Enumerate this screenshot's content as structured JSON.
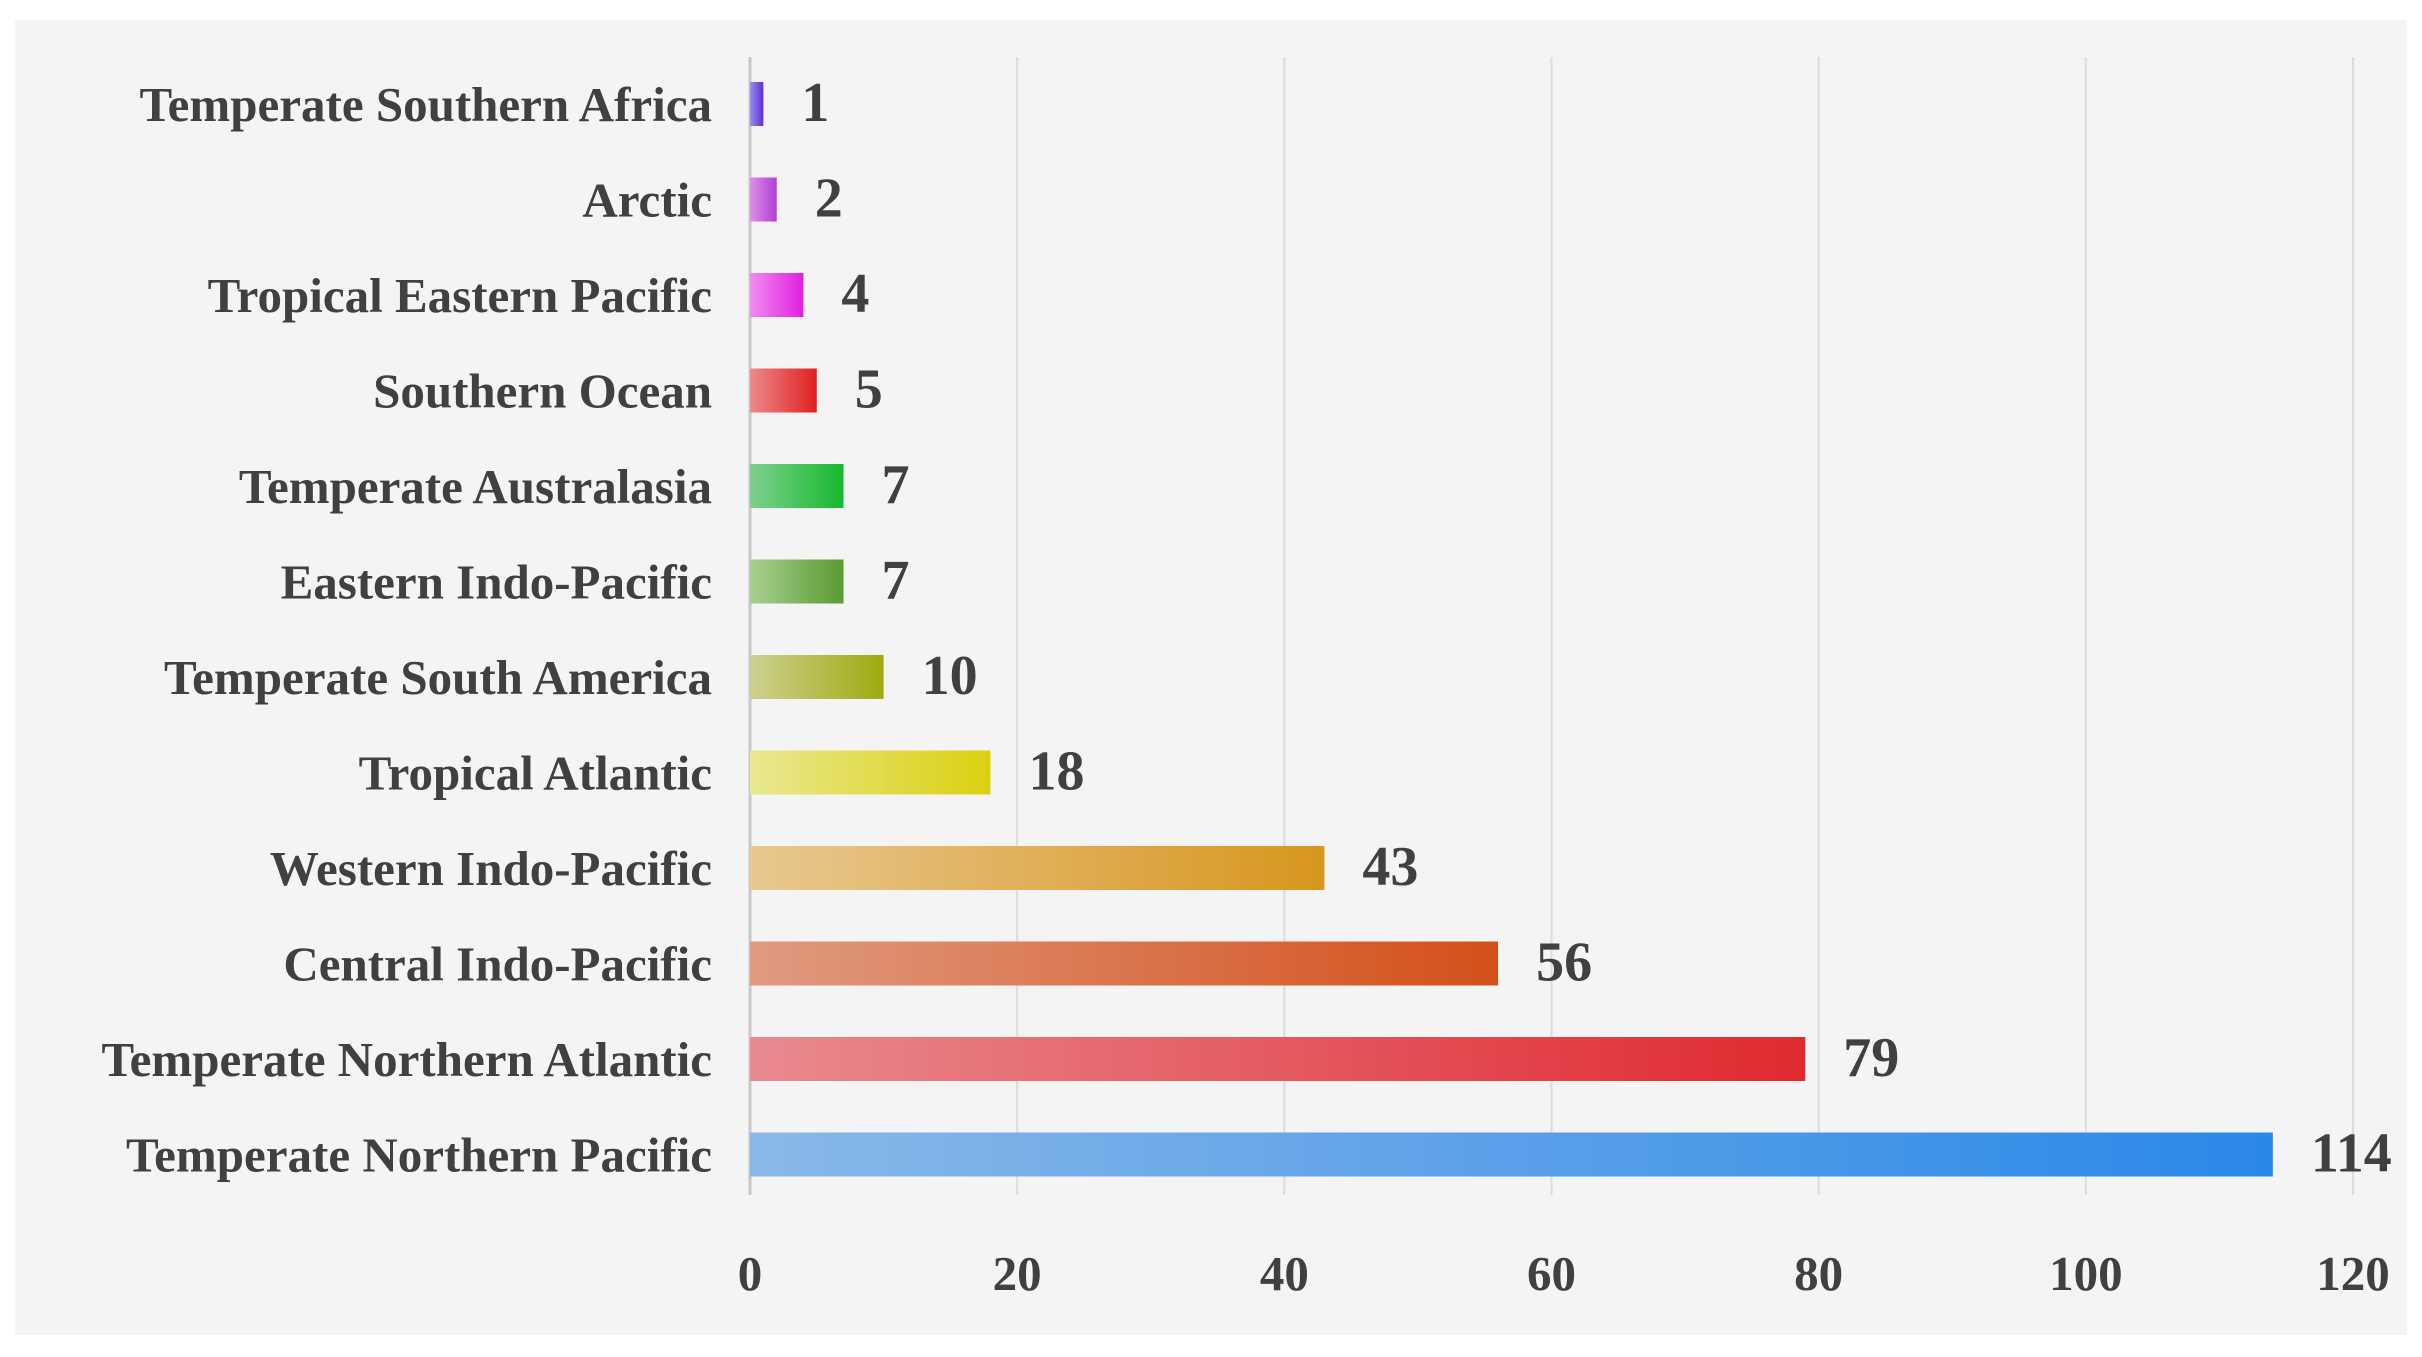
{
  "chart_data": {
    "type": "bar",
    "orientation": "horizontal",
    "categories": [
      "Temperate Southern Africa",
      "Arctic",
      "Tropical Eastern Pacific",
      "Southern Ocean",
      "Temperate Australasia",
      "Eastern Indo-Pacific",
      "Temperate South America",
      "Tropical Atlantic",
      "Western Indo-Pacific",
      "Central Indo-Pacific",
      "Temperate Northern Atlantic",
      "Temperate Northern Pacific"
    ],
    "values": [
      1,
      2,
      4,
      5,
      7,
      7,
      10,
      18,
      43,
      56,
      79,
      114
    ],
    "data_labels": [
      "1",
      "2",
      "4",
      "5",
      "7",
      "7",
      "10",
      "18",
      "43",
      "56",
      "79",
      "114"
    ],
    "bar_colors": [
      [
        "#9b8cf0",
        "#5b2fd8"
      ],
      [
        "#dd8fe6",
        "#b03fd6"
      ],
      [
        "#f08cf0",
        "#e020e0"
      ],
      [
        "#ec8a8a",
        "#e02020"
      ],
      [
        "#7fd08f",
        "#17b82e"
      ],
      [
        "#a8d090",
        "#5a9a32"
      ],
      [
        "#cfd090",
        "#a0aa10"
      ],
      [
        "#e8e890",
        "#dcd010"
      ],
      [
        "#e8c890",
        "#d8961e"
      ],
      [
        "#e09a80",
        "#d4501a"
      ],
      [
        "#e88a90",
        "#e02a30"
      ],
      [
        "#8ab8e8",
        "#2a88e8"
      ]
    ],
    "xlim": [
      0,
      120
    ],
    "xticks": [
      "0",
      "20",
      "40",
      "60",
      "80",
      "100",
      "120"
    ],
    "grid": "vertical",
    "title": "",
    "xlabel": "",
    "ylabel": "",
    "legend": "none"
  }
}
